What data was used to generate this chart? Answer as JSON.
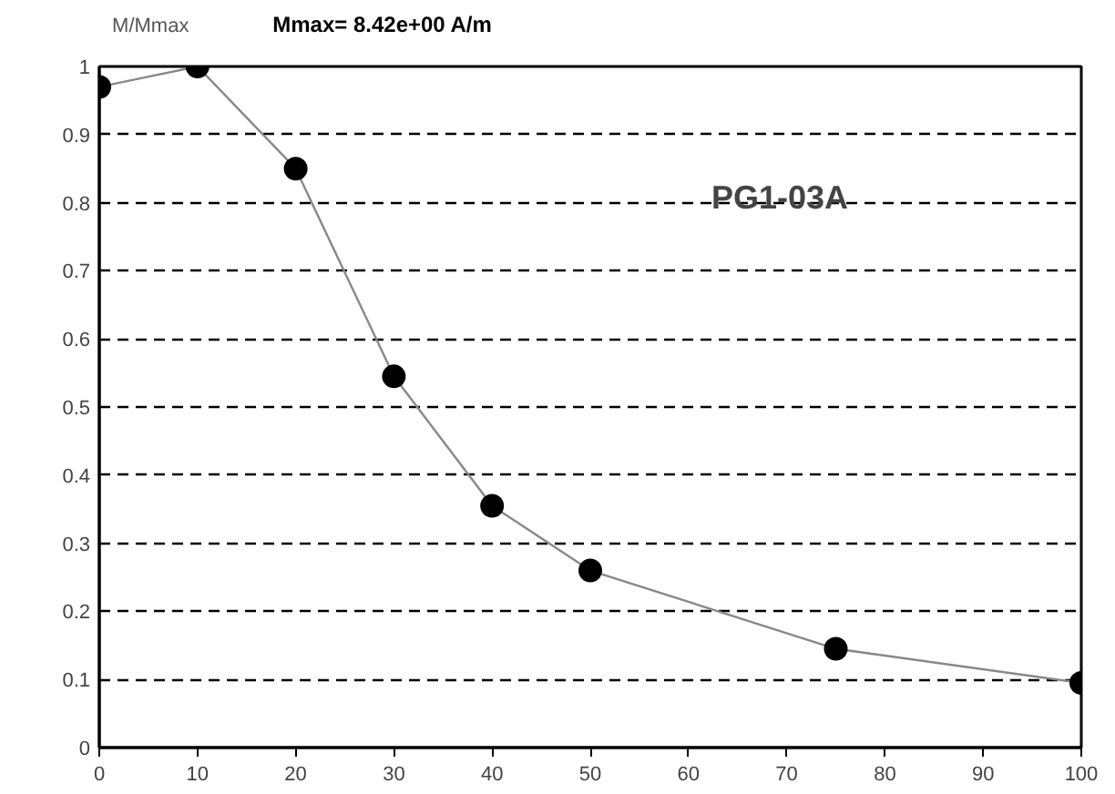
{
  "chart_data": {
    "type": "line",
    "title": "Mmax= 8.42e+00  A/m",
    "ylabel": "M/Mmax",
    "annotations": [
      "PG1-03A"
    ],
    "x": [
      0,
      10,
      20,
      30,
      40,
      50,
      75,
      100
    ],
    "series": [
      {
        "color": "#000000",
        "values": [
          0.97,
          1.0,
          0.85,
          0.545,
          0.355,
          0.26,
          0.145,
          0.095
        ]
      }
    ],
    "xlim": [
      0,
      100
    ],
    "xticks": [
      0,
      10,
      20,
      30,
      40,
      50,
      60,
      70,
      80,
      90,
      100
    ],
    "ylim": [
      0,
      1
    ],
    "yticks": [
      0,
      0.1,
      0.2,
      0.3,
      0.4,
      0.5,
      0.6,
      0.7,
      0.8,
      0.9,
      1
    ],
    "grid": "y",
    "marker": "circle",
    "line_style": "solid"
  }
}
